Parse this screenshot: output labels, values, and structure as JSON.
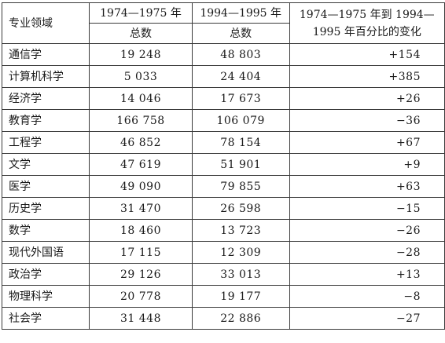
{
  "headers": {
    "field": "专业领域",
    "period1": "1974—1975 年",
    "period2": "1994—1995 年",
    "total1": "总数",
    "total2": "总数",
    "change_line1": "1974—1975 年到 1994—",
    "change_line2": "1995 年百分比的变化"
  },
  "rows": [
    {
      "field": "通信学",
      "total_1974_1975": "19 248",
      "total_1994_1995": "48 803",
      "change": "+154"
    },
    {
      "field": "计算机科学",
      "total_1974_1975": "5 033",
      "total_1994_1995": "24 404",
      "change": "+385"
    },
    {
      "field": "经济学",
      "total_1974_1975": "14 046",
      "total_1994_1995": "17 673",
      "change": "+26"
    },
    {
      "field": "教育学",
      "total_1974_1975": "166 758",
      "total_1994_1995": "106 079",
      "change": "−36"
    },
    {
      "field": "工程学",
      "total_1974_1975": "46 852",
      "total_1994_1995": "78 154",
      "change": "+67"
    },
    {
      "field": "文学",
      "total_1974_1975": "47 619",
      "total_1994_1995": "51 901",
      "change": "+9"
    },
    {
      "field": "医学",
      "total_1974_1975": "49 090",
      "total_1994_1995": "79 855",
      "change": "+63"
    },
    {
      "field": "历史学",
      "total_1974_1975": "31 470",
      "total_1994_1995": "26 598",
      "change": "−15"
    },
    {
      "field": "数学",
      "total_1974_1975": "18 460",
      "total_1994_1995": "13 723",
      "change": "−26"
    },
    {
      "field": "现代外国语",
      "total_1974_1975": "17 115",
      "total_1994_1995": "12 309",
      "change": "−28"
    },
    {
      "field": "政治学",
      "total_1974_1975": "29 126",
      "total_1994_1995": "33 013",
      "change": "+13"
    },
    {
      "field": "物理科学",
      "total_1974_1975": "20 778",
      "total_1994_1995": "19 177",
      "change": "−8"
    },
    {
      "field": "社会学",
      "total_1974_1975": "31 448",
      "total_1994_1995": "22 886",
      "change": "−27"
    }
  ]
}
